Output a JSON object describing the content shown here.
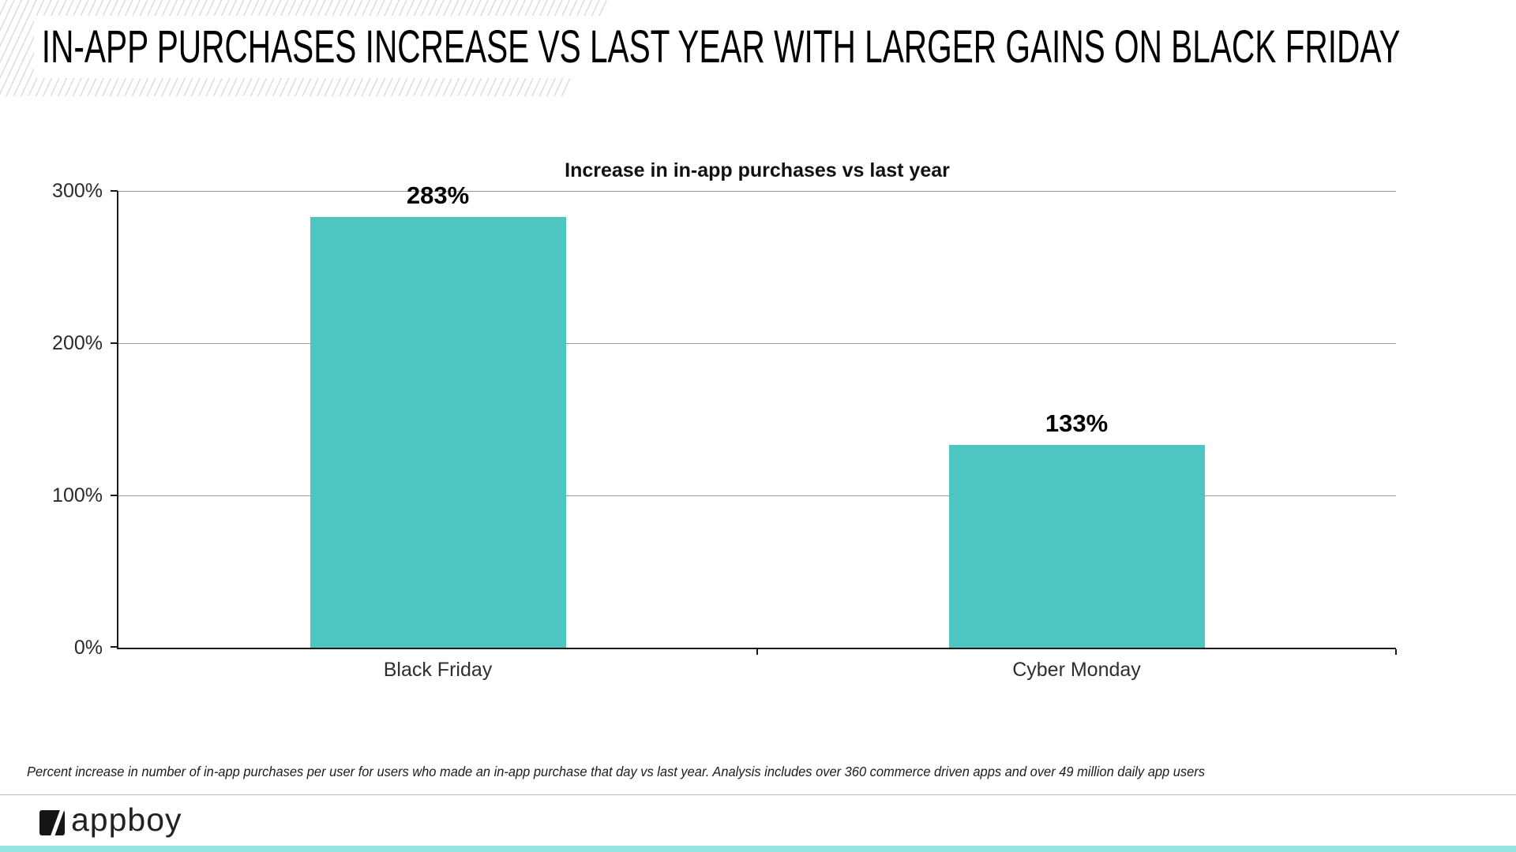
{
  "slide": {
    "title": "IN-APP PURCHASES INCREASE VS LAST YEAR WITH LARGER GAINS ON BLACK FRIDAY"
  },
  "chart_data": {
    "type": "bar",
    "title": "Increase in in-app purchases vs last year",
    "categories": [
      "Black Friday",
      "Cyber Monday"
    ],
    "values": [
      283,
      133
    ],
    "value_labels": [
      "283%",
      "133%"
    ],
    "ylim": [
      0,
      300
    ],
    "yticks": [
      0,
      100,
      200,
      300
    ],
    "ytick_labels": [
      "0%",
      "100%",
      "200%",
      "300%"
    ],
    "xlabel": "",
    "ylabel": "",
    "grid": true,
    "legend": false,
    "bar_color": "#4dc5c0"
  },
  "footnote": "Percent increase in number of in-app purchases per user for users who made an in-app purchase that day vs last year.  Analysis includes over 360 commerce driven apps and over 49 million daily app users",
  "footer": {
    "brand": "appboy"
  },
  "colors": {
    "bar_teal": "#4dc5c0",
    "accent_strip": "#96e4e0",
    "hatch_line": "#dcdcdc",
    "axis": "#1a1a1a",
    "gridline": "#999999"
  }
}
